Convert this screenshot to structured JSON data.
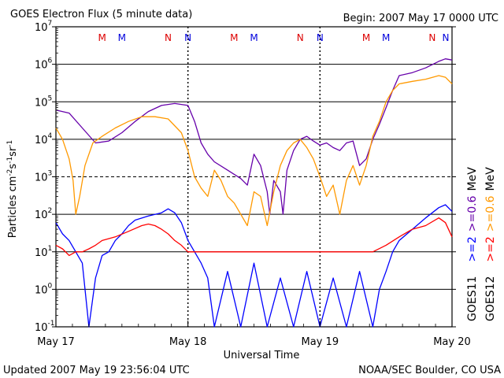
{
  "title": "GOES Electron Flux (5 minute data)",
  "begin_label": "Begin: 2007 May 17 0000 UTC",
  "updated_label": "Updated 2007 May 19 23:56:04 UTC",
  "source_label": "NOAA/SEC Boulder, CO USA",
  "colors": {
    "goes11_gt2": "#0000ff",
    "goes12_gt2": "#ff0000",
    "goes11_gt06": "#6600aa",
    "goes12_gt06": "#ff9900",
    "marker_m": "#dd0000",
    "marker_n": "#0000dd"
  },
  "chart_data": {
    "type": "line",
    "title": "GOES Electron Flux (5 minute data)",
    "xlabel": "Universal Time",
    "ylabel": "Particles cm^-2 s^-1 sr^-1",
    "y_scale": "log",
    "ylim": [
      0.1,
      10000000
    ],
    "xlim": [
      0,
      3
    ],
    "x_ticks": [
      {
        "x": 0,
        "label": "May 17"
      },
      {
        "x": 1,
        "label": "May 18"
      },
      {
        "x": 2,
        "label": "May 19"
      },
      {
        "x": 3,
        "label": "May 20"
      }
    ],
    "y_ticks": [
      {
        "y": 0.1,
        "base": "10",
        "exp": "-1"
      },
      {
        "y": 1,
        "base": "10",
        "exp": "0"
      },
      {
        "y": 10,
        "base": "10",
        "exp": "1"
      },
      {
        "y": 100,
        "base": "10",
        "exp": "2"
      },
      {
        "y": 1000,
        "base": "10",
        "exp": "3"
      },
      {
        "y": 10000,
        "base": "10",
        "exp": "4"
      },
      {
        "y": 100000,
        "base": "10",
        "exp": "5"
      },
      {
        "y": 1000000,
        "base": "10",
        "exp": "6"
      },
      {
        "y": 10000000,
        "base": "10",
        "exp": "7"
      }
    ],
    "grid": "horizontal lines at each decade; dashed at 10^3",
    "day_markers": [
      1,
      2
    ],
    "local_time_markers": [
      {
        "x": 0.35,
        "label": "M",
        "color": "#dd0000"
      },
      {
        "x": 0.5,
        "label": "M",
        "color": "#0000dd"
      },
      {
        "x": 0.85,
        "label": "N",
        "color": "#dd0000"
      },
      {
        "x": 1.0,
        "label": "N",
        "color": "#0000dd"
      },
      {
        "x": 1.35,
        "label": "M",
        "color": "#dd0000"
      },
      {
        "x": 1.5,
        "label": "M",
        "color": "#0000dd"
      },
      {
        "x": 1.85,
        "label": "N",
        "color": "#dd0000"
      },
      {
        "x": 2.0,
        "label": "N",
        "color": "#0000dd"
      },
      {
        "x": 2.35,
        "label": "M",
        "color": "#dd0000"
      },
      {
        "x": 2.5,
        "label": "M",
        "color": "#0000dd"
      },
      {
        "x": 2.85,
        "label": "N",
        "color": "#dd0000"
      },
      {
        "x": 3.0,
        "label": "N",
        "color": "#0000dd"
      }
    ],
    "legend": {
      "placement": "right",
      "columns": [
        {
          "sat": "GOES11",
          "entries": [
            {
              "text": ">=2",
              "color": "#0000ff"
            },
            {
              "text": ">=0.6",
              "color": "#6600aa"
            },
            {
              "text": "MeV",
              "color": "#000000"
            }
          ]
        },
        {
          "sat": "GOES12",
          "entries": [
            {
              "text": ">=2",
              "color": "#ff0000"
            },
            {
              "text": ">=0.6",
              "color": "#ff9900"
            },
            {
              "text": "MeV",
              "color": "#000000"
            }
          ]
        }
      ]
    },
    "series": [
      {
        "name": "GOES11 >=0.6 MeV",
        "color": "#6600aa",
        "points": [
          [
            0,
            60000
          ],
          [
            0.1,
            50000
          ],
          [
            0.2,
            20000
          ],
          [
            0.3,
            8000
          ],
          [
            0.4,
            9000
          ],
          [
            0.5,
            15000
          ],
          [
            0.6,
            30000
          ],
          [
            0.7,
            55000
          ],
          [
            0.8,
            80000
          ],
          [
            0.9,
            90000
          ],
          [
            1.0,
            80000
          ],
          [
            1.05,
            30000
          ],
          [
            1.1,
            8000
          ],
          [
            1.15,
            4000
          ],
          [
            1.2,
            2500
          ],
          [
            1.3,
            1500
          ],
          [
            1.4,
            900
          ],
          [
            1.45,
            600
          ],
          [
            1.5,
            4000
          ],
          [
            1.55,
            2000
          ],
          [
            1.6,
            400
          ],
          [
            1.62,
            100
          ],
          [
            1.65,
            800
          ],
          [
            1.7,
            400
          ],
          [
            1.72,
            100
          ],
          [
            1.75,
            1500
          ],
          [
            1.8,
            5000
          ],
          [
            1.85,
            10000
          ],
          [
            1.9,
            12000
          ],
          [
            1.95,
            9000
          ],
          [
            2.0,
            7000
          ],
          [
            2.05,
            8000
          ],
          [
            2.1,
            6000
          ],
          [
            2.15,
            5000
          ],
          [
            2.2,
            8000
          ],
          [
            2.25,
            9000
          ],
          [
            2.3,
            2000
          ],
          [
            2.35,
            3000
          ],
          [
            2.4,
            10000
          ],
          [
            2.45,
            25000
          ],
          [
            2.5,
            70000
          ],
          [
            2.55,
            200000
          ],
          [
            2.6,
            500000
          ],
          [
            2.7,
            600000
          ],
          [
            2.8,
            800000
          ],
          [
            2.9,
            1200000
          ],
          [
            2.95,
            1400000
          ],
          [
            3.0,
            1300000
          ]
        ]
      },
      {
        "name": "GOES12 >=0.6 MeV",
        "color": "#ff9900",
        "points": [
          [
            0,
            20000
          ],
          [
            0.05,
            10000
          ],
          [
            0.1,
            3000
          ],
          [
            0.13,
            800
          ],
          [
            0.15,
            100
          ],
          [
            0.18,
            300
          ],
          [
            0.22,
            2000
          ],
          [
            0.28,
            8000
          ],
          [
            0.35,
            12000
          ],
          [
            0.45,
            20000
          ],
          [
            0.55,
            30000
          ],
          [
            0.65,
            40000
          ],
          [
            0.75,
            40000
          ],
          [
            0.85,
            35000
          ],
          [
            0.95,
            15000
          ],
          [
            1.0,
            5000
          ],
          [
            1.05,
            1000
          ],
          [
            1.1,
            500
          ],
          [
            1.15,
            300
          ],
          [
            1.2,
            1500
          ],
          [
            1.25,
            800
          ],
          [
            1.3,
            300
          ],
          [
            1.35,
            200
          ],
          [
            1.4,
            100
          ],
          [
            1.45,
            50
          ],
          [
            1.5,
            400
          ],
          [
            1.55,
            300
          ],
          [
            1.6,
            50
          ],
          [
            1.65,
            400
          ],
          [
            1.7,
            2000
          ],
          [
            1.75,
            5000
          ],
          [
            1.8,
            8000
          ],
          [
            1.85,
            10000
          ],
          [
            1.9,
            6000
          ],
          [
            1.95,
            3000
          ],
          [
            2.0,
            1000
          ],
          [
            2.05,
            300
          ],
          [
            2.1,
            600
          ],
          [
            2.15,
            100
          ],
          [
            2.2,
            800
          ],
          [
            2.25,
            2000
          ],
          [
            2.3,
            600
          ],
          [
            2.35,
            2000
          ],
          [
            2.4,
            12000
          ],
          [
            2.45,
            30000
          ],
          [
            2.5,
            100000
          ],
          [
            2.55,
            200000
          ],
          [
            2.6,
            300000
          ],
          [
            2.7,
            350000
          ],
          [
            2.8,
            400000
          ],
          [
            2.9,
            500000
          ],
          [
            2.95,
            450000
          ],
          [
            3.0,
            300000
          ]
        ]
      },
      {
        "name": "GOES11 >=2 MeV",
        "color": "#0000ff",
        "points": [
          [
            0,
            60
          ],
          [
            0.05,
            30
          ],
          [
            0.1,
            20
          ],
          [
            0.15,
            10
          ],
          [
            0.2,
            5
          ],
          [
            0.25,
            0.1
          ],
          [
            0.3,
            2
          ],
          [
            0.35,
            8
          ],
          [
            0.4,
            10
          ],
          [
            0.45,
            20
          ],
          [
            0.5,
            30
          ],
          [
            0.55,
            50
          ],
          [
            0.6,
            70
          ],
          [
            0.7,
            90
          ],
          [
            0.8,
            110
          ],
          [
            0.85,
            140
          ],
          [
            0.9,
            110
          ],
          [
            0.95,
            60
          ],
          [
            1.0,
            20
          ],
          [
            1.05,
            10
          ],
          [
            1.1,
            5
          ],
          [
            1.15,
            2
          ],
          [
            1.2,
            0.1
          ],
          [
            1.3,
            3
          ],
          [
            1.4,
            0.1
          ],
          [
            1.5,
            5
          ],
          [
            1.6,
            0.1
          ],
          [
            1.7,
            2
          ],
          [
            1.8,
            0.1
          ],
          [
            1.9,
            3
          ],
          [
            2.0,
            0.1
          ],
          [
            2.1,
            2
          ],
          [
            2.2,
            0.1
          ],
          [
            2.3,
            3
          ],
          [
            2.4,
            0.1
          ],
          [
            2.45,
            1
          ],
          [
            2.5,
            3
          ],
          [
            2.55,
            10
          ],
          [
            2.6,
            20
          ],
          [
            2.7,
            40
          ],
          [
            2.8,
            80
          ],
          [
            2.9,
            150
          ],
          [
            2.95,
            180
          ],
          [
            3.0,
            120
          ]
        ]
      },
      {
        "name": "GOES12 >=2 MeV",
        "color": "#ff0000",
        "points": [
          [
            0,
            15
          ],
          [
            0.05,
            12
          ],
          [
            0.1,
            8
          ],
          [
            0.15,
            10
          ],
          [
            0.2,
            10
          ],
          [
            0.25,
            12
          ],
          [
            0.3,
            15
          ],
          [
            0.35,
            20
          ],
          [
            0.45,
            25
          ],
          [
            0.55,
            35
          ],
          [
            0.65,
            50
          ],
          [
            0.7,
            55
          ],
          [
            0.75,
            50
          ],
          [
            0.8,
            40
          ],
          [
            0.85,
            30
          ],
          [
            0.9,
            20
          ],
          [
            0.95,
            15
          ],
          [
            1.0,
            10
          ],
          [
            1.2,
            10
          ],
          [
            1.4,
            10
          ],
          [
            1.6,
            10
          ],
          [
            1.8,
            10
          ],
          [
            2.0,
            10
          ],
          [
            2.2,
            10
          ],
          [
            2.4,
            10
          ],
          [
            2.5,
            15
          ],
          [
            2.6,
            25
          ],
          [
            2.7,
            40
          ],
          [
            2.8,
            50
          ],
          [
            2.9,
            80
          ],
          [
            2.95,
            60
          ],
          [
            3.0,
            25
          ]
        ]
      }
    ]
  }
}
